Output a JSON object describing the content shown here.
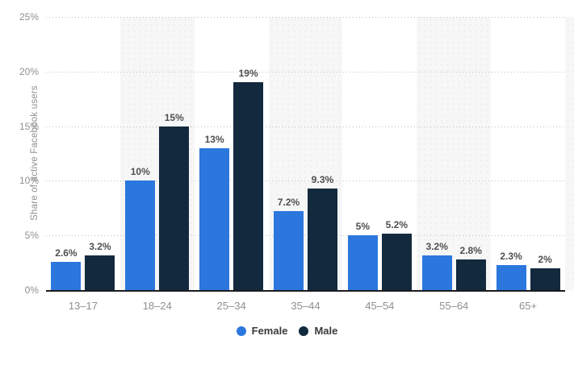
{
  "chart_data": {
    "type": "bar",
    "title": "",
    "categories": [
      "13–17",
      "18–24",
      "25–34",
      "35–44",
      "45–54",
      "55–64",
      "65+"
    ],
    "series": [
      {
        "name": "Female",
        "color": "#2b77de",
        "values": [
          2.6,
          10,
          13,
          7.2,
          5,
          3.2,
          2.3
        ],
        "value_labels": [
          "2.6%",
          "10%",
          "13%",
          "7.2%",
          "5%",
          "3.2%",
          "2.3%"
        ]
      },
      {
        "name": "Male",
        "color": "#13293e",
        "values": [
          3.2,
          15,
          19,
          9.3,
          5.2,
          2.8,
          2
        ],
        "value_labels": [
          "3.2%",
          "15%",
          "19%",
          "9.3%",
          "5.2%",
          "2.8%",
          "2%"
        ]
      }
    ],
    "xlabel": "",
    "ylabel": "Share of active Facebook users",
    "ylim": [
      0,
      25
    ],
    "yticks": [
      {
        "value": 0,
        "label": "0%"
      },
      {
        "value": 5,
        "label": "5%"
      },
      {
        "value": 10,
        "label": "10%"
      },
      {
        "value": 15,
        "label": "15%"
      },
      {
        "value": 20,
        "label": "20%"
      },
      {
        "value": 25,
        "label": "25%"
      }
    ],
    "grid": "dotted-horizontal",
    "legend_position": "bottom",
    "shaded_column_indices": [
      1,
      3,
      5
    ]
  },
  "palette": {
    "female_bar": "#2b77de",
    "male_bar": "#13293e",
    "grid_dot": "#bdbdbd",
    "axis_line": "#1a1a1f",
    "band_fill": "#f7f7f7",
    "band_dot": "#ececec",
    "tick_text": "#8f8f8f",
    "value_text": "#4f4f4f",
    "legend_text": "#3b3b3b",
    "background": "#ffffff"
  }
}
